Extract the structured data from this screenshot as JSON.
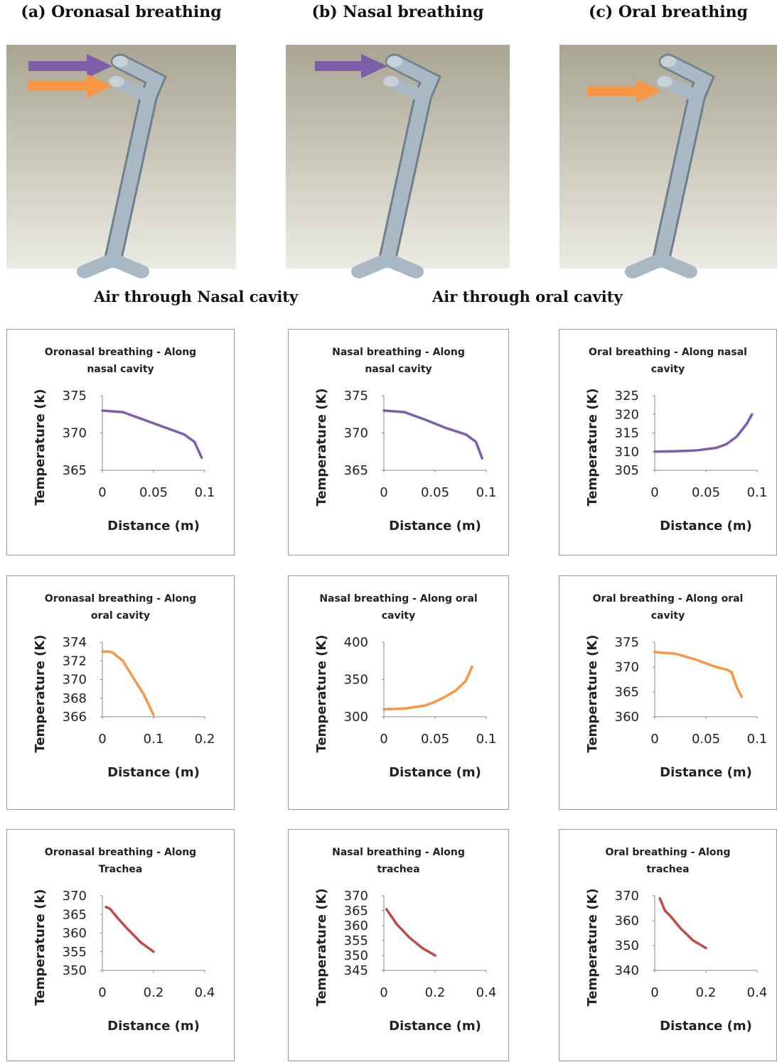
{
  "headers": [
    "(a) Oronasal breathing",
    "(b) Nasal breathing",
    "(c) Oral breathing"
  ],
  "legend": [
    "Air through Nasal cavity",
    "Air through oral cavity"
  ],
  "chart_data": [
    {
      "type": "line",
      "title": "Oronasal breathing - Along nasal cavity",
      "x_label": "Distance (m)",
      "y_label": "Temperature (k)",
      "color": "#7e5ea8",
      "x": [
        0,
        0.02,
        0.04,
        0.06,
        0.08,
        0.09,
        0.097
      ],
      "values": [
        373,
        372.8,
        371.8,
        370.8,
        369.8,
        368.8,
        366.7
      ],
      "xlim": [
        0,
        0.1
      ],
      "xticks": [
        0,
        0.05,
        0.1
      ],
      "ylim": [
        365,
        375
      ],
      "yticks": [
        365,
        370,
        375
      ],
      "grid": false
    },
    {
      "type": "line",
      "title": "Nasal breathing - Along nasal cavity",
      "x_label": "Distance (m)",
      "y_label": "Temperature (K)",
      "color": "#7e5ea8",
      "x": [
        0,
        0.02,
        0.04,
        0.06,
        0.08,
        0.09,
        0.096
      ],
      "values": [
        373,
        372.8,
        371.8,
        370.7,
        369.8,
        368.8,
        366.6
      ],
      "xlim": [
        0,
        0.1
      ],
      "xticks": [
        0,
        0.05,
        0.1
      ],
      "ylim": [
        365,
        375
      ],
      "yticks": [
        365,
        370,
        375
      ],
      "grid": false
    },
    {
      "type": "line",
      "title": "Oral breathing - Along nasal cavity",
      "x_label": "Distance (m)",
      "y_label": "Temperature (K)",
      "color": "#7e5ea8",
      "x": [
        0,
        0.02,
        0.04,
        0.06,
        0.07,
        0.08,
        0.09,
        0.095
      ],
      "values": [
        310,
        310.1,
        310.3,
        311,
        312,
        314,
        317.5,
        320
      ],
      "xlim": [
        0,
        0.1
      ],
      "xticks": [
        0,
        0.05,
        0.1
      ],
      "ylim": [
        305,
        325
      ],
      "yticks": [
        305,
        310,
        315,
        320,
        325
      ],
      "grid": false
    },
    {
      "type": "line",
      "title": "Oronasal breathing - Along oral cavity",
      "x_label": "Distance (m)",
      "y_label": "Temperature (K)",
      "color": "#f79646",
      "x": [
        0,
        0.01,
        0.02,
        0.04,
        0.06,
        0.08,
        0.1
      ],
      "values": [
        373,
        373,
        372.9,
        372,
        370.2,
        368.5,
        366.2
      ],
      "xlim": [
        0,
        0.2
      ],
      "xticks": [
        0,
        0.1,
        0.2
      ],
      "ylim": [
        366,
        374
      ],
      "yticks": [
        366,
        368,
        370,
        372,
        374
      ],
      "grid": false
    },
    {
      "type": "line",
      "title": "Nasal breathing - Along oral cavity",
      "x_label": "Distance (m)",
      "y_label": "Temperature (K)",
      "color": "#f79646",
      "x": [
        0,
        0.02,
        0.04,
        0.05,
        0.06,
        0.07,
        0.08,
        0.086
      ],
      "values": [
        310,
        311,
        315,
        320,
        327,
        335,
        348,
        367
      ],
      "xlim": [
        0,
        0.1
      ],
      "xticks": [
        0,
        0.05,
        0.1
      ],
      "ylim": [
        300,
        400
      ],
      "yticks": [
        300,
        350,
        400
      ],
      "grid": false
    },
    {
      "type": "line",
      "title": "Oral breathing - Along oral cavity",
      "x_label": "Distance (m)",
      "y_label": "Temperature (K)",
      "color": "#f79646",
      "x": [
        0,
        0.02,
        0.04,
        0.06,
        0.07,
        0.075,
        0.08,
        0.085
      ],
      "values": [
        373,
        372.7,
        371.5,
        370,
        369.5,
        369,
        366,
        364
      ],
      "xlim": [
        0,
        0.1
      ],
      "xticks": [
        0,
        0.05,
        0.1
      ],
      "ylim": [
        360,
        375
      ],
      "yticks": [
        360,
        365,
        370,
        375
      ],
      "grid": false
    },
    {
      "type": "line",
      "title": "Oronasal breathing - Along Trachea",
      "x_label": "Distance (m)",
      "y_label": "Temperature (k)",
      "color": "#be4b48",
      "x": [
        0.014,
        0.03,
        0.06,
        0.1,
        0.15,
        0.2
      ],
      "values": [
        367,
        366.5,
        364,
        361,
        357.5,
        355
      ],
      "xlim": [
        0,
        0.4
      ],
      "xticks": [
        0,
        0.2,
        0.4
      ],
      "ylim": [
        350,
        370
      ],
      "yticks": [
        350,
        355,
        360,
        365,
        370
      ],
      "grid": false
    },
    {
      "type": "line",
      "title": "Nasal breathing - Along trachea",
      "x_label": "Distance (m)",
      "y_label": "Temperature (K)",
      "color": "#be4b48",
      "x": [
        0.01,
        0.05,
        0.1,
        0.15,
        0.2
      ],
      "values": [
        365.5,
        360.5,
        356,
        352.5,
        350
      ],
      "xlim": [
        0,
        0.4
      ],
      "xticks": [
        0,
        0.2,
        0.4
      ],
      "ylim": [
        345,
        370
      ],
      "yticks": [
        345,
        350,
        355,
        360,
        365,
        370
      ],
      "grid": false
    },
    {
      "type": "line",
      "title": "Oral breathing - Along trachea",
      "x_label": "Distance (m)",
      "y_label": "Temperature (K)",
      "color": "#be4b48",
      "x": [
        0.02,
        0.04,
        0.06,
        0.1,
        0.15,
        0.2
      ],
      "values": [
        369,
        364,
        362,
        357,
        352,
        349
      ],
      "xlim": [
        0,
        0.4
      ],
      "xticks": [
        0,
        0.2,
        0.4
      ],
      "ylim": [
        340,
        370
      ],
      "yticks": [
        340,
        350,
        360,
        370
      ],
      "grid": false
    }
  ]
}
